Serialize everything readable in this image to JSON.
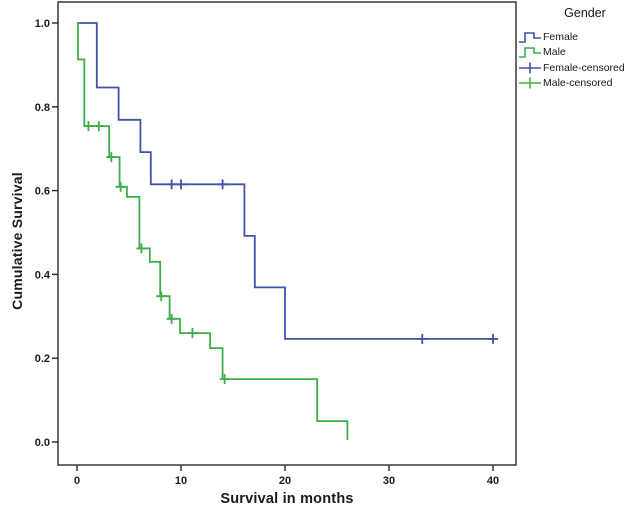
{
  "figure": {
    "background": "#ffffff",
    "frame_color": "#2a2a2a"
  },
  "axes": {
    "x_title": "Survival in months",
    "y_title": "Cumulative Survival",
    "x_ticks": [
      {
        "value": 0,
        "label": "0"
      },
      {
        "value": 10,
        "label": "10"
      },
      {
        "value": 20,
        "label": "20"
      },
      {
        "value": 30,
        "label": "30"
      },
      {
        "value": 40,
        "label": "40"
      }
    ],
    "y_ticks": [
      {
        "value": 0.0,
        "label": "0.0"
      },
      {
        "value": 0.2,
        "label": "0.2"
      },
      {
        "value": 0.4,
        "label": "0.4"
      },
      {
        "value": 0.6,
        "label": "0.6"
      },
      {
        "value": 0.8,
        "label": "0.8"
      },
      {
        "value": 1.0,
        "label": "1.0"
      }
    ]
  },
  "legend": {
    "title": "Gender",
    "items": [
      {
        "label": "Female",
        "glyph": "step-line",
        "color": "#4053a8"
      },
      {
        "label": "Male",
        "glyph": "step-line",
        "color": "#3fae4a"
      },
      {
        "label": "Female-censored",
        "glyph": "plus-line",
        "color": "#4053a8"
      },
      {
        "label": "Male-censored",
        "glyph": "plus-line",
        "color": "#3fae4a"
      }
    ]
  },
  "chart_data": {
    "type": "line",
    "subtype": "kaplan-meier-step",
    "title": "",
    "xlabel": "Survival in months",
    "ylabel": "Cumulative Survival",
    "xlim": [
      -1.8,
      42.2
    ],
    "ylim": [
      -0.055,
      1.05
    ],
    "xticks": [
      0,
      10,
      20,
      30,
      40
    ],
    "yticks": [
      0.0,
      0.2,
      0.4,
      0.6,
      0.8,
      1.0
    ],
    "grid": false,
    "legend_position": "right-top-outside",
    "legend_title": "Gender",
    "series": [
      {
        "name": "Female",
        "color": "#4053a8",
        "steps": [
          [
            0,
            1.0
          ],
          [
            1.9,
            1.0
          ],
          [
            1.9,
            0.846
          ],
          [
            4.0,
            0.846
          ],
          [
            4.0,
            0.769
          ],
          [
            6.1,
            0.769
          ],
          [
            6.1,
            0.692
          ],
          [
            7.1,
            0.692
          ],
          [
            7.1,
            0.615
          ],
          [
            16.1,
            0.615
          ],
          [
            16.1,
            0.492
          ],
          [
            17.1,
            0.492
          ],
          [
            17.1,
            0.369
          ],
          [
            20.0,
            0.369
          ],
          [
            20.0,
            0.246
          ],
          [
            40.2,
            0.246
          ]
        ],
        "censored": [
          [
            9.1,
            0.615
          ],
          [
            10.0,
            0.615
          ],
          [
            14.0,
            0.615
          ],
          [
            33.2,
            0.246
          ],
          [
            40.0,
            0.246
          ]
        ]
      },
      {
        "name": "Male",
        "color": "#3fae4a",
        "steps": [
          [
            0,
            1.0
          ],
          [
            0.1,
            1.0
          ],
          [
            0.1,
            0.913
          ],
          [
            0.7,
            0.913
          ],
          [
            0.7,
            0.754
          ],
          [
            3.1,
            0.754
          ],
          [
            3.1,
            0.68
          ],
          [
            4.1,
            0.68
          ],
          [
            4.1,
            0.609
          ],
          [
            4.8,
            0.609
          ],
          [
            4.8,
            0.585
          ],
          [
            6.0,
            0.585
          ],
          [
            6.0,
            0.462
          ],
          [
            7.0,
            0.462
          ],
          [
            7.0,
            0.43
          ],
          [
            8.0,
            0.43
          ],
          [
            8.0,
            0.348
          ],
          [
            8.9,
            0.348
          ],
          [
            8.9,
            0.294
          ],
          [
            9.9,
            0.294
          ],
          [
            9.9,
            0.26
          ],
          [
            12.8,
            0.26
          ],
          [
            12.8,
            0.224
          ],
          [
            14.0,
            0.224
          ],
          [
            14.0,
            0.15
          ],
          [
            23.1,
            0.15
          ],
          [
            23.1,
            0.05
          ],
          [
            26.0,
            0.05
          ],
          [
            26.0,
            0.005
          ]
        ],
        "censored": [
          [
            1.1,
            0.754
          ],
          [
            2.1,
            0.754
          ],
          [
            3.3,
            0.68
          ],
          [
            4.2,
            0.609
          ],
          [
            6.2,
            0.462
          ],
          [
            8.1,
            0.348
          ],
          [
            9.1,
            0.294
          ],
          [
            11.1,
            0.26
          ],
          [
            14.2,
            0.15
          ]
        ]
      }
    ]
  }
}
